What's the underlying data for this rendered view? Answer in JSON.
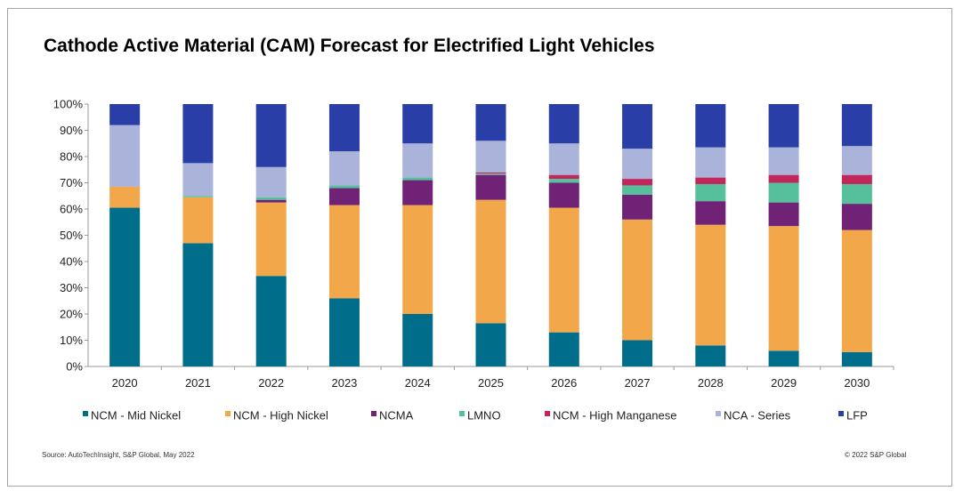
{
  "title": "Cathode Active Material (CAM) Forecast for Electrified Light Vehicles",
  "source": "Source: AutoTechInsight, S&P Global, May 2022",
  "copyright": "© 2022 S&P Global",
  "chart_data": {
    "type": "bar",
    "stacked": true,
    "title": "Cathode Active Material (CAM) Forecast for Electrified Light Vehicles",
    "xlabel": "",
    "ylabel": "",
    "ylim": [
      0,
      100
    ],
    "y_ticks": [
      "0%",
      "10%",
      "20%",
      "30%",
      "40%",
      "50%",
      "60%",
      "70%",
      "80%",
      "90%",
      "100%"
    ],
    "categories": [
      "2020",
      "2021",
      "2022",
      "2023",
      "2024",
      "2025",
      "2026",
      "2027",
      "2028",
      "2029",
      "2030"
    ],
    "legend_position": "bottom",
    "grid": false,
    "series": [
      {
        "name": "NCM - Mid Nickel",
        "color": "#006e8a",
        "values": [
          60.5,
          47,
          34.5,
          26,
          20,
          16.5,
          13,
          10,
          8,
          6,
          5.5
        ]
      },
      {
        "name": "NCM - High Nickel",
        "color": "#f2a84a",
        "values": [
          8,
          17.5,
          28,
          35.5,
          41.5,
          47,
          47.5,
          46,
          46,
          47.5,
          46.5
        ]
      },
      {
        "name": "NCMA",
        "color": "#702277",
        "values": [
          0,
          0,
          1,
          6.5,
          9.5,
          9.5,
          9.5,
          9.5,
          9,
          9,
          10
        ]
      },
      {
        "name": "LMNO",
        "color": "#56bf9c",
        "values": [
          0,
          0.5,
          1,
          1,
          1,
          0.5,
          1.5,
          3.5,
          6.5,
          7.5,
          7.5
        ]
      },
      {
        "name": "NCM - High Manganese",
        "color": "#c1275a",
        "values": [
          0,
          0,
          0,
          0,
          0,
          0.5,
          1.5,
          2.5,
          2.5,
          3,
          3.5
        ]
      },
      {
        "name": "NCA - Series",
        "color": "#aab3d9",
        "values": [
          23.5,
          12.5,
          11.5,
          13,
          13,
          12,
          12,
          11.5,
          11.5,
          10.5,
          11
        ]
      },
      {
        "name": "LFP",
        "color": "#2a3ea8",
        "values": [
          8,
          22.5,
          24,
          18,
          15,
          14,
          15,
          17,
          16.5,
          16.5,
          16
        ]
      }
    ]
  }
}
